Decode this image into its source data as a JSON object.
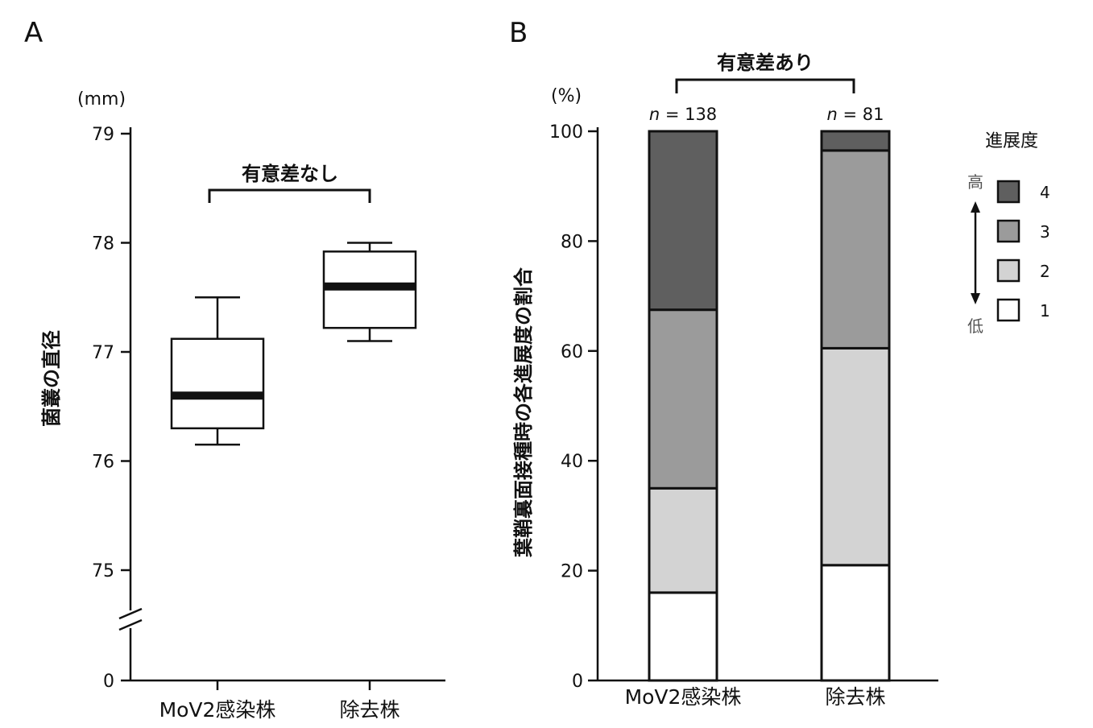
{
  "chart_data": [
    {
      "panel": "A",
      "type": "box",
      "unit": "(mm)",
      "ylabel": "菌叢の直径",
      "yticks": [
        0,
        75,
        76,
        77,
        78,
        79
      ],
      "axis_break": true,
      "categories": [
        "MoV2感染株",
        "除去株"
      ],
      "boxes": [
        {
          "category": "MoV2感染株",
          "whisker_low": 76.15,
          "q1": 76.3,
          "median": 76.6,
          "q3": 77.12,
          "whisker_high": 77.5
        },
        {
          "category": "除去株",
          "whisker_low": 77.1,
          "q1": 77.22,
          "median": 77.6,
          "q3": 77.92,
          "whisker_high": 78.0
        }
      ],
      "annotation": "有意差なし"
    },
    {
      "panel": "B",
      "type": "stacked-bar",
      "unit": "(%)",
      "ylabel": "葉鞘裏面接種時の各進展度の割合",
      "yticks": [
        0,
        20,
        40,
        60,
        80,
        100
      ],
      "ylim": [
        0,
        100
      ],
      "categories": [
        "MoV2感染株",
        "除去株"
      ],
      "n_prefix": "n",
      "n_values": [
        "138",
        "81"
      ],
      "series": [
        {
          "name": "1",
          "color": "#ffffff",
          "values": [
            16,
            21
          ]
        },
        {
          "name": "2",
          "color": "#d3d3d3",
          "values": [
            19,
            39.5
          ]
        },
        {
          "name": "3",
          "color": "#9b9b9b",
          "values": [
            32.5,
            36
          ]
        },
        {
          "name": "4",
          "color": "#5f5f5f",
          "values": [
            32.5,
            3.5
          ]
        }
      ],
      "annotation": "有意差あり",
      "legend": {
        "title": "進展度",
        "position": "right",
        "high_label": "高",
        "low_label": "低"
      }
    }
  ]
}
